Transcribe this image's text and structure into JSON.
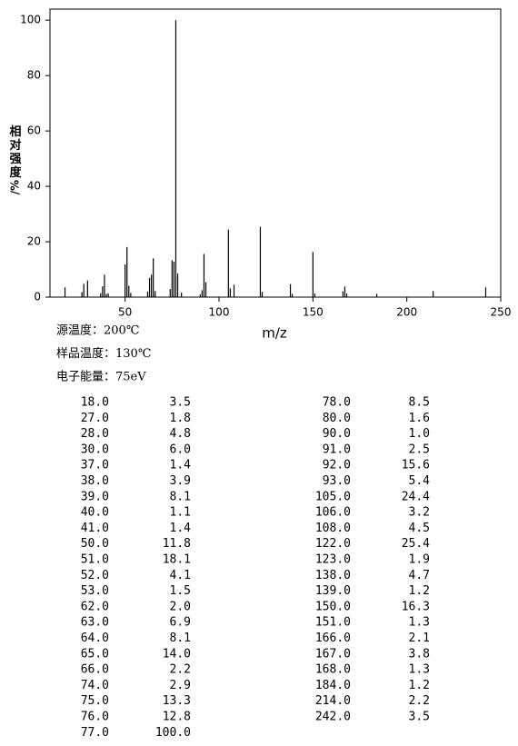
{
  "chart_data": {
    "type": "bar",
    "xlabel": "m/z",
    "ylabel": "相对强度",
    "ylabel_unit": "/%",
    "info": [
      "源温度：200℃",
      "样品温度：130℃",
      "电子能量：75eV"
    ],
    "x": [
      18,
      27,
      28,
      30,
      37,
      38,
      39,
      40,
      41,
      50,
      51,
      52,
      53,
      62,
      63,
      64,
      65,
      66,
      74,
      75,
      76,
      77,
      78,
      80,
      90,
      91,
      92,
      93,
      105,
      106,
      108,
      122,
      123,
      138,
      139,
      150,
      151,
      166,
      167,
      168,
      184,
      214,
      242
    ],
    "x_labels": [
      "18.0",
      "27.0",
      "28.0",
      "30.0",
      "37.0",
      "38.0",
      "39.0",
      "40.0",
      "41.0",
      "50.0",
      "51.0",
      "52.0",
      "53.0",
      "62.0",
      "63.0",
      "64.0",
      "65.0",
      "66.0",
      "74.0",
      "75.0",
      "76.0",
      "77.0",
      "78.0",
      "80.0",
      "90.0",
      "91.0",
      "92.0",
      "93.0",
      "105.0",
      "106.0",
      "108.0",
      "122.0",
      "123.0",
      "138.0",
      "139.0",
      "150.0",
      "151.0",
      "166.0",
      "167.0",
      "168.0",
      "184.0",
      "214.0",
      "242.0"
    ],
    "values": [
      3.5,
      1.8,
      4.8,
      6.0,
      1.4,
      3.9,
      8.1,
      1.1,
      1.4,
      11.8,
      18.1,
      4.1,
      1.5,
      2.0,
      6.9,
      8.1,
      14.0,
      2.2,
      2.9,
      13.3,
      12.8,
      100.0,
      8.5,
      1.6,
      1.0,
      2.5,
      15.6,
      5.4,
      24.4,
      3.2,
      4.5,
      25.4,
      1.9,
      4.7,
      1.2,
      16.3,
      1.3,
      2.1,
      3.8,
      1.3,
      1.2,
      2.2,
      3.5
    ],
    "value_labels": [
      "3.5",
      "1.8",
      "4.8",
      "6.0",
      "1.4",
      "3.9",
      "8.1",
      "1.1",
      "1.4",
      "11.8",
      "18.1",
      "4.1",
      "1.5",
      "2.0",
      "6.9",
      "8.1",
      "14.0",
      "2.2",
      "2.9",
      "13.3",
      "12.8",
      "100.0",
      "8.5",
      "1.6",
      "1.0",
      "2.5",
      "15.6",
      "5.4",
      "24.4",
      "3.2",
      "4.5",
      "25.4",
      "1.9",
      "4.7",
      "1.2",
      "16.3",
      "1.3",
      "2.1",
      "3.8",
      "1.3",
      "1.2",
      "2.2",
      "3.5"
    ],
    "color": "#000000",
    "xlim": [
      10,
      250
    ],
    "xticks": [
      50,
      100,
      150,
      200,
      250
    ],
    "ylim": [
      0,
      104
    ],
    "yticks": [
      0,
      20,
      40,
      60,
      80,
      100
    ]
  }
}
